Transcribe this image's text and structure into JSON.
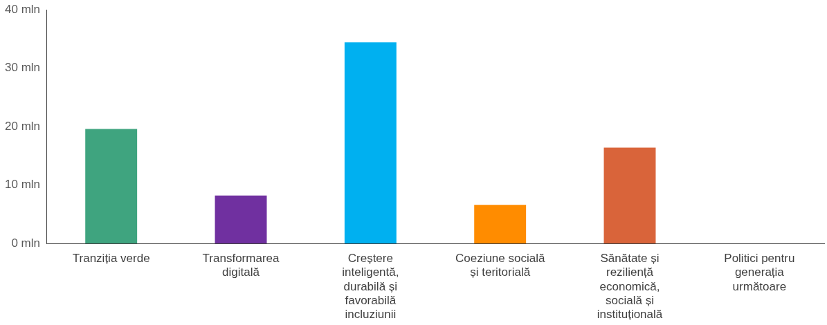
{
  "chart_data": {
    "type": "bar",
    "categories": [
      "Tranziția verde",
      "Transformarea digitală",
      "Creștere inteligentă, durabilă și favorabilă incluziunii",
      "Coeziune socială și teritorială",
      "Sănătate și reziliență economică, socială și instituțională",
      "Politici pentru generația următoare"
    ],
    "values": [
      19.6,
      8.2,
      34.4,
      6.6,
      16.4,
      0
    ],
    "colors": [
      "#3fa47f",
      "#7030a0",
      "#00b0f0",
      "#ff8c00",
      "#d9643a",
      "#a5a5a5"
    ],
    "ylim": [
      0,
      40
    ],
    "yticks": [
      {
        "value": 0,
        "label": "0 mln"
      },
      {
        "value": 10,
        "label": "10 mln"
      },
      {
        "value": 20,
        "label": "20 mln"
      },
      {
        "value": 30,
        "label": "30 mln"
      },
      {
        "value": 40,
        "label": "40 mln"
      }
    ],
    "grid": false,
    "legend": false
  }
}
